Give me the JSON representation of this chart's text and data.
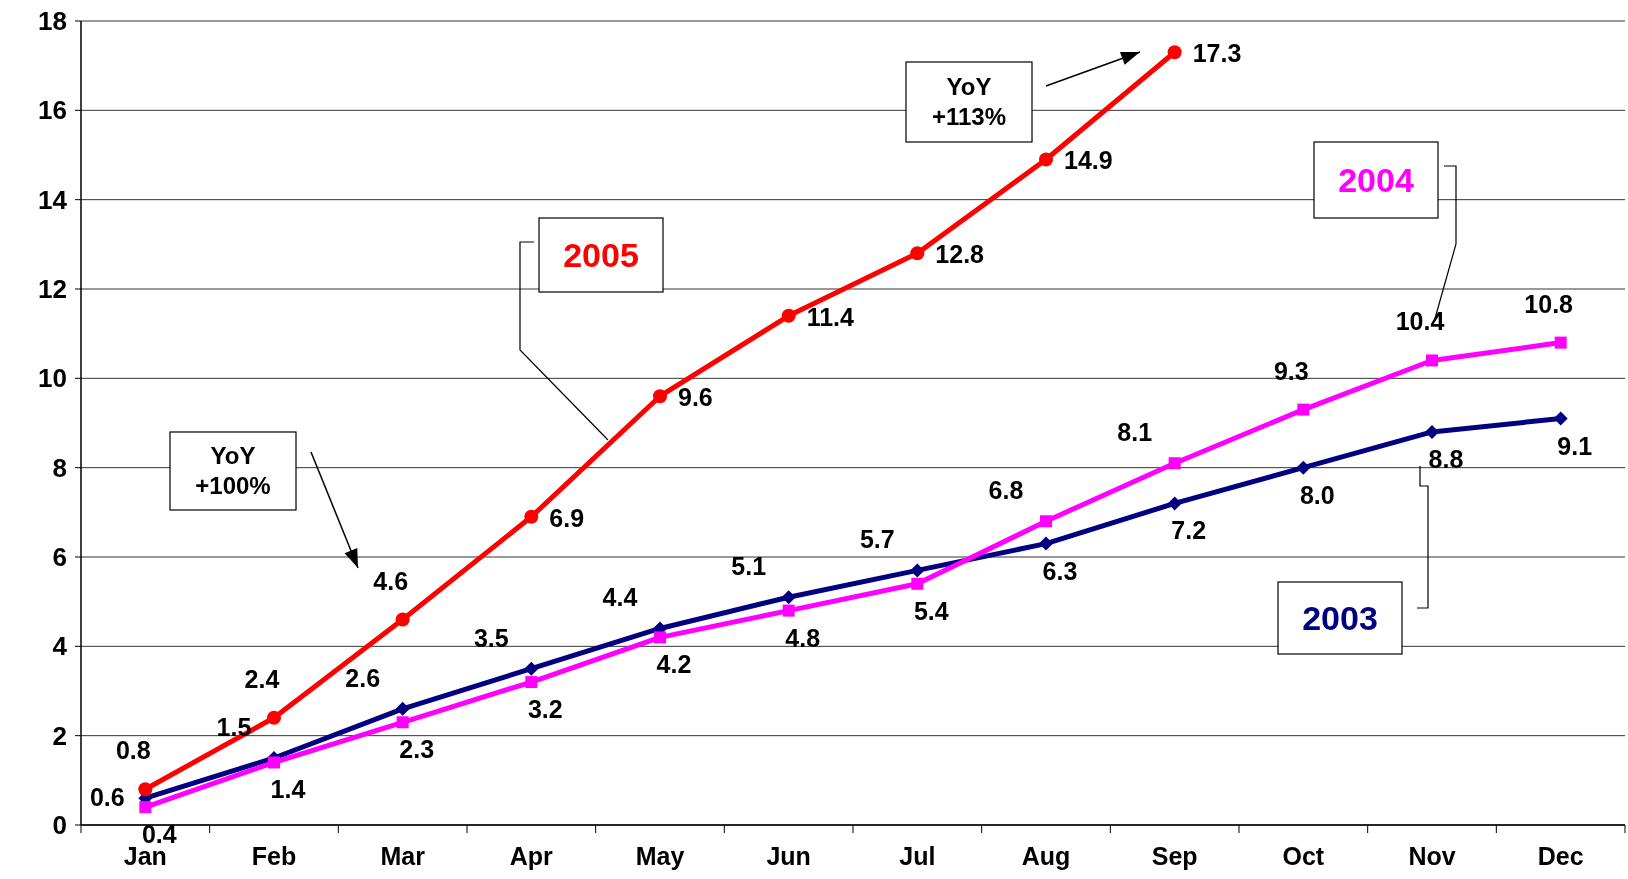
{
  "chart_data": {
    "type": "line",
    "categories": [
      "Jan",
      "Feb",
      "Mar",
      "Apr",
      "May",
      "Jun",
      "Jul",
      "Aug",
      "Sep",
      "Oct",
      "Nov",
      "Dec"
    ],
    "series": [
      {
        "name": "2003",
        "color": "#000080",
        "marker": "diamond",
        "values": [
          0.6,
          1.5,
          2.6,
          3.5,
          4.4,
          5.1,
          5.7,
          6.3,
          7.2,
          8.0,
          8.8,
          9.1
        ],
        "value_labels": [
          "0.6",
          "1.5",
          "2.6",
          "3.5",
          "4.4",
          "5.1",
          "5.7",
          "6.3",
          "7.2",
          "8.0",
          "8.8",
          "9.1"
        ]
      },
      {
        "name": "2004",
        "color": "#ff00ff",
        "marker": "square",
        "values": [
          0.4,
          1.4,
          2.3,
          3.2,
          4.2,
          4.8,
          5.4,
          6.8,
          8.1,
          9.3,
          10.4,
          10.8
        ]
      },
      {
        "name": "2005",
        "color": "#ff0000",
        "marker": "circle",
        "values": [
          0.8,
          2.4,
          4.6,
          6.9,
          9.6,
          11.4,
          12.8,
          14.9,
          17.3,
          null,
          null,
          null
        ]
      }
    ],
    "ylim": [
      0,
      18
    ],
    "yticks": [
      0,
      2,
      4,
      6,
      8,
      10,
      12,
      14,
      16,
      18
    ],
    "grid": "y",
    "data_labels": true,
    "annotations": [
      "YoY +100%",
      "YoY +113%"
    ]
  }
}
